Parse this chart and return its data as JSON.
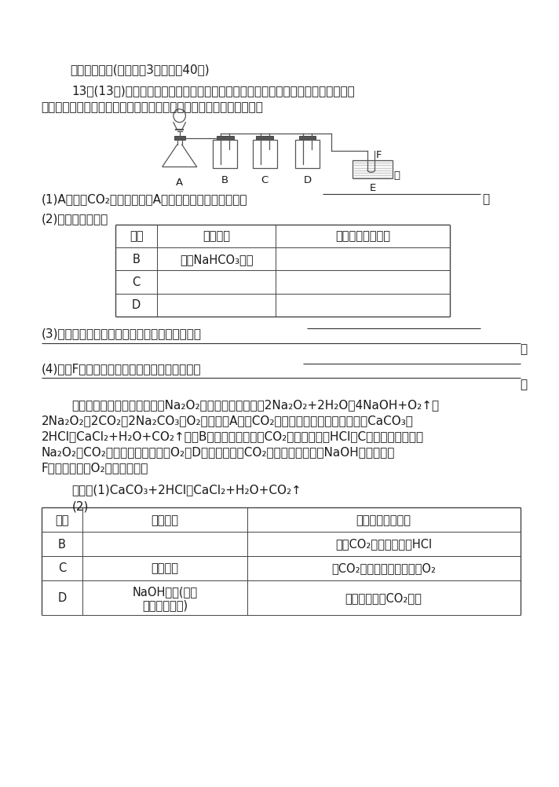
{
  "bg_color": "#ffffff",
  "text_color": "#1a1a1a",
  "title_section": "二、非选择题(本题包括3小题，共40分)",
  "q13_line1": "13．(13分)在呼吸面具和潜水艇中可用过氧化钠做供氧剂。请选用适当的化学试剂和",
  "q13_line2": "实验用品，用如图中的实验装置进行实验，证明过氧化钠可做供氧剂。",
  "q1_text": "(1)A是制取CO₂的装置。写出A中发生反应的化学方程式：",
  "q2_text": "(2)填写表中空格：",
  "table1_headers": [
    "仪器",
    "加入试剂",
    "加入该试剂的目的"
  ],
  "table1_row1": [
    "B",
    "饱和NaHCO₃溶液",
    ""
  ],
  "table1_row2": [
    "C",
    "",
    ""
  ],
  "table1_row3": [
    "D",
    "",
    ""
  ],
  "q3_text": "(3)写出过氧化钠与二氧化碳反应的化学方程式：",
  "q4_text": "(4)试管F中收集满气体后，下一步的实验操作是",
  "ana_indent": "解析：本题的实验目的为证明Na₂O₂可做供氧剂，即证明2Na₂O₂+2H₂O＝4NaOH+O₂↑，",
  "ana_line2": "2Na₂O₂＋2CO₂＝2Na₂CO₃＋O₂，则装置A应是CO₂气体的制取装置（反应原理：CaCO₃＋",
  "ana_line3": "2HCl＝CaCl₂+H₂O+CO₂↑）。B为除杂装置，除去CO₂气体中混入的HCl。C是主体反应装置，",
  "ana_line4": "Na₂O₂与CO₂和水蒸气反应，产生O₂。D为吸收剩余的CO₂气体的装置，选择NaOH溶液吸收。",
  "ana_line5": "F是收集并验证O₂存在的装置。",
  "ans_line1": "答案：(1)CaCO₃+2HCl＝CaCl₂+H₂O+CO₂↑",
  "ans_line2": "(2)",
  "table2_headers": [
    "仪器",
    "加入试剂",
    "加入该试剂的目的"
  ],
  "table2_row1": [
    "B",
    "",
    "除去CO₂气体中混入的HCl"
  ],
  "table2_row2": [
    "C",
    "过氧化钠",
    "与CO₂和水蒸气反应，产生O₂"
  ],
  "table2_row3_reagent1": "NaOH溶液(其他",
  "table2_row3_reagent2": "合理答案也可)",
  "table2_row3_purpose": "吸收未反应的CO₂气体",
  "label_A": "A",
  "label_B": "B",
  "label_C": "C",
  "label_D": "D",
  "label_E": "E",
  "label_F": "F",
  "label_water": "水"
}
